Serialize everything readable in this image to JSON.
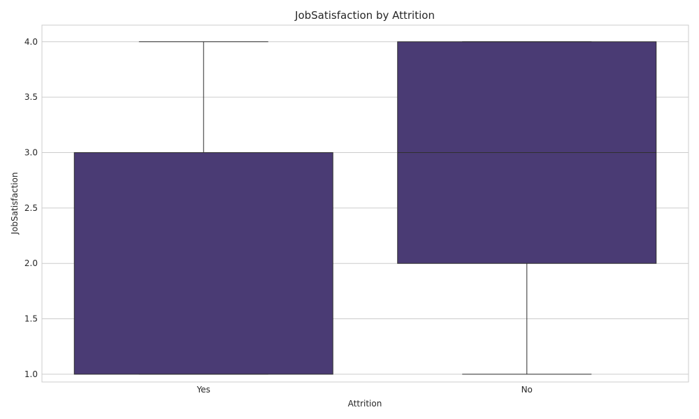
{
  "chart_data": {
    "type": "boxplot",
    "title": "JobSatisfaction by Attrition",
    "xlabel": "Attrition",
    "ylabel": "JobSatisfaction",
    "categories": [
      "Yes",
      "No"
    ],
    "boxes": [
      {
        "category": "Yes",
        "whisker_low": 1.0,
        "q1": 1.0,
        "median": 3.0,
        "q3": 3.0,
        "whisker_high": 4.0
      },
      {
        "category": "No",
        "whisker_low": 1.0,
        "q1": 2.0,
        "median": 3.0,
        "q3": 4.0,
        "whisker_high": 4.0
      }
    ],
    "yticks": [
      "1.0",
      "1.5",
      "2.0",
      "2.5",
      "3.0",
      "3.5",
      "4.0"
    ],
    "ylim": [
      0.93,
      4.15
    ],
    "grid": true,
    "colors": {
      "box_fill": "#4a3b74",
      "box_edge": "#2f2f2f",
      "grid": "#cccccc",
      "frame": "#cccccc"
    }
  }
}
